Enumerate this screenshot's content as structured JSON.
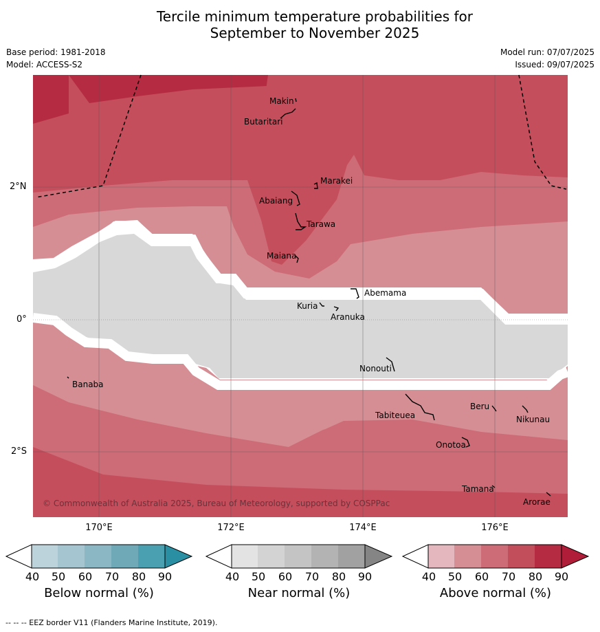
{
  "title_line1": "Tercile minimum temperature probabilities for",
  "title_line2": "September to November 2025",
  "meta": {
    "base_period": "Base period: 1981-2018",
    "model": "Model: ACCESS-S2",
    "model_run": "Model run: 07/07/2025",
    "issued": "Issued: 09/07/2025"
  },
  "axes": {
    "lat_labels": [
      "2°N",
      "0°",
      "2°S"
    ],
    "lon_labels": [
      "170°E",
      "172°E",
      "174°E",
      "176°E"
    ]
  },
  "islands": [
    {
      "name": "Makin"
    },
    {
      "name": "Butaritari"
    },
    {
      "name": "Marakei"
    },
    {
      "name": "Abaiang"
    },
    {
      "name": "Tarawa"
    },
    {
      "name": "Maiana"
    },
    {
      "name": "Abemama"
    },
    {
      "name": "Kuria"
    },
    {
      "name": "Aranuka"
    },
    {
      "name": "Nonouti"
    },
    {
      "name": "Banaba"
    },
    {
      "name": "Beru"
    },
    {
      "name": "Tabiteuea"
    },
    {
      "name": "Nikunau"
    },
    {
      "name": "Onotoa"
    },
    {
      "name": "Tamana"
    },
    {
      "name": "Arorae"
    }
  ],
  "copyright": "© Commonwealth of Australia 2025, Bureau of Meteorology, supported by COSPPac",
  "colorbars": [
    {
      "title": "Below normal (%)",
      "ticks": [
        "40",
        "50",
        "60",
        "70",
        "80",
        "90"
      ],
      "colors": [
        "#bdd3dc",
        "#a5c5d0",
        "#8bb7c4",
        "#6fa9b8",
        "#4aa0b0",
        "#2a8fa3"
      ]
    },
    {
      "title": "Near normal (%)",
      "ticks": [
        "40",
        "50",
        "60",
        "70",
        "80",
        "90"
      ],
      "colors": [
        "#e3e3e3",
        "#d3d3d3",
        "#c4c4c4",
        "#b3b3b3",
        "#a1a1a1",
        "#858585"
      ]
    },
    {
      "title": "Above normal (%)",
      "ticks": [
        "40",
        "50",
        "60",
        "70",
        "80",
        "90"
      ],
      "colors": [
        "#e3b7bd",
        "#d68e95",
        "#cd6c76",
        "#c24e5b",
        "#b52c42",
        "#b01d38"
      ]
    }
  ],
  "footer": "-- -- -- EEZ border V11 (Flanders Marine Institute, 2019).",
  "legend_colors": {
    "near_normal_area": "#d8d8d8",
    "above_40": "#d68e95",
    "above_50": "#cd6c76",
    "above_60": "#c44e5c",
    "above_70": "#b52c42"
  }
}
